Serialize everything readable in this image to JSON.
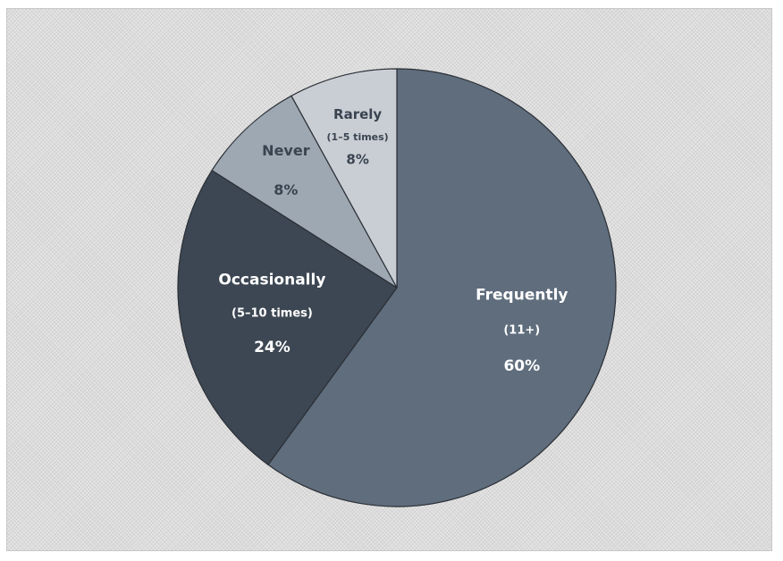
{
  "chart_data": {
    "type": "pie",
    "title": "",
    "slices": [
      {
        "label": "Frequently",
        "sublabel": "(11+)",
        "value": 60,
        "value_label": "60%",
        "color": "#5f6d7d",
        "label_color": "#ffffff"
      },
      {
        "label": "Occasionally",
        "sublabel": "(5–10 times)",
        "value": 24,
        "value_label": "24%",
        "color": "#3d4753",
        "label_color": "#ffffff"
      },
      {
        "label": "Never",
        "sublabel": "",
        "value": 8,
        "value_label": "8%",
        "color": "#9ea8b3",
        "label_color": "#3a4450"
      },
      {
        "label": "Rarely",
        "sublabel": "(1–5 times)",
        "value": 8,
        "value_label": "8%",
        "color": "#c9ced4",
        "label_color": "#3a4450"
      }
    ],
    "start_angle_deg": 0,
    "direction": "clockwise",
    "background_color": "#dcdcdc",
    "legend": "none"
  }
}
